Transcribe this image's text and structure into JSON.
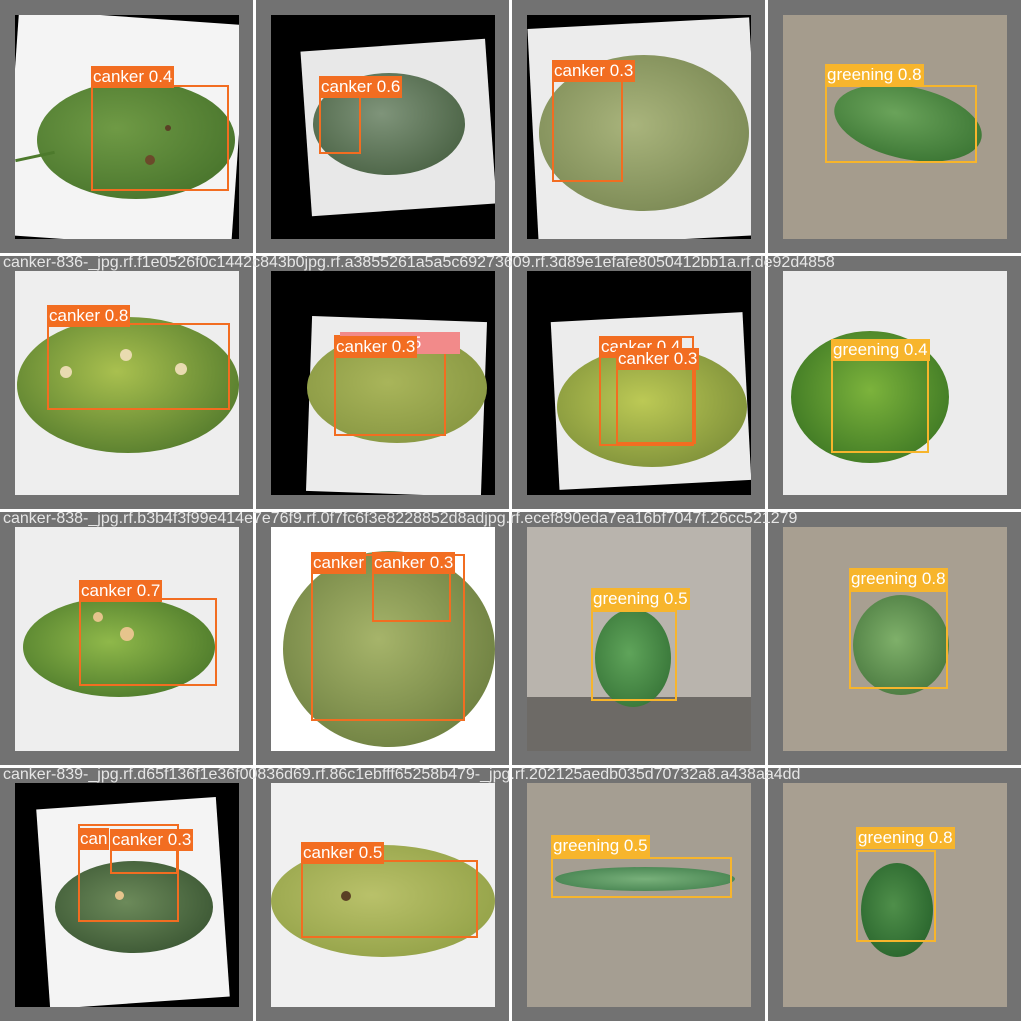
{
  "colors": {
    "canker_box": "#f26d21",
    "greening_box": "#f7b52c",
    "tile_frame": "#727272",
    "filename_text": "#e6e6e6"
  },
  "rows": [
    {
      "caption": "",
      "tiles": [
        {
          "detections": [
            {
              "label": "canker 0.4",
              "cls": "canker"
            }
          ]
        },
        {
          "detections": [
            {
              "label": "canker 0.6",
              "cls": "canker"
            }
          ]
        },
        {
          "detections": [
            {
              "label": "canker 0.3",
              "cls": "canker"
            }
          ]
        },
        {
          "detections": [
            {
              "label": "greening 0.8",
              "cls": "greening"
            }
          ]
        }
      ]
    },
    {
      "caption": "canker-836-_jpg.rf.f1e0526f0c1442c843b0jpg.rf.a3855261a5a5c69273609.rf.3d89e1efafe8050412bb1a.rf.de92d4858",
      "tiles": [
        {
          "detections": [
            {
              "label": "canker 0.8",
              "cls": "canker"
            }
          ]
        },
        {
          "detections": [
            {
              "label": "canker 0.3",
              "cls": "canker"
            },
            {
              "label": "canker 0.5",
              "cls": "canker"
            }
          ]
        },
        {
          "detections": [
            {
              "label": "canker 0.4",
              "cls": "canker"
            },
            {
              "label": "canker 0.3",
              "cls": "canker"
            }
          ]
        },
        {
          "detections": [
            {
              "label": "greening 0.4",
              "cls": "greening"
            }
          ]
        }
      ]
    },
    {
      "caption": "canker-838-_jpg.rf.b3b4f3f99e414e7e76f9.rf.0f7fc6f3e8228852d8adjpg.rf.ecef890eda7ea16bf7047f.26cc521279",
      "tiles": [
        {
          "detections": [
            {
              "label": "canker 0.7",
              "cls": "canker"
            }
          ]
        },
        {
          "detections": [
            {
              "label": "canker",
              "cls": "canker"
            },
            {
              "label": "canker 0.3",
              "cls": "canker"
            }
          ]
        },
        {
          "detections": [
            {
              "label": "greening 0.5",
              "cls": "greening"
            }
          ]
        },
        {
          "detections": [
            {
              "label": "greening 0.8",
              "cls": "greening"
            }
          ]
        }
      ]
    },
    {
      "caption": "canker-839-_jpg.rf.d65f136f1e36f00836d69.rf.86c1ebfff65258b479-_jpg.rf.202125aedb035d70732a8.a438aa4dd",
      "tiles": [
        {
          "detections": [
            {
              "label": "can",
              "cls": "canker"
            },
            {
              "label": "canker 0.3",
              "cls": "canker"
            }
          ]
        },
        {
          "detections": [
            {
              "label": "canker 0.5",
              "cls": "canker"
            }
          ]
        },
        {
          "detections": [
            {
              "label": "greening 0.5",
              "cls": "greening"
            }
          ]
        },
        {
          "detections": [
            {
              "label": "greening 0.8",
              "cls": "greening"
            }
          ]
        }
      ]
    }
  ]
}
